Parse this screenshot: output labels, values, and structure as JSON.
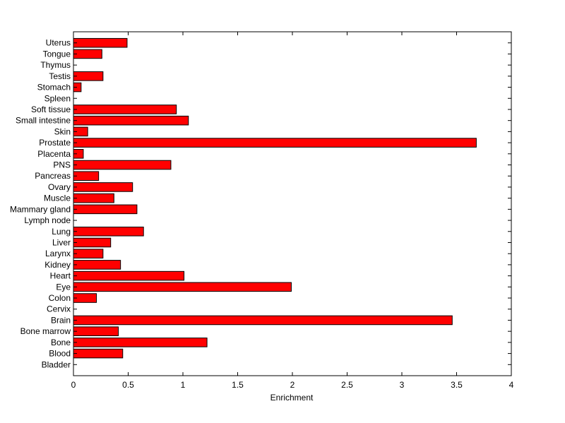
{
  "chart_data": {
    "type": "bar",
    "orientation": "horizontal",
    "title": "",
    "xlabel": "Enrichment",
    "ylabel": "",
    "xlim": [
      0,
      4
    ],
    "xticks": [
      0,
      0.5,
      1,
      1.5,
      2,
      2.5,
      3,
      3.5,
      4
    ],
    "xtick_labels": [
      "0",
      "0.5",
      "1",
      "1.5",
      "2",
      "2.5",
      "3",
      "3.5",
      "4"
    ],
    "grid": false,
    "legend": "none",
    "bar_color": "#ff0000",
    "bar_edge_color": "#000000",
    "categories": [
      "Bladder",
      "Blood",
      "Bone",
      "Bone marrow",
      "Brain",
      "Cervix",
      "Colon",
      "Eye",
      "Heart",
      "Kidney",
      "Larynx",
      "Liver",
      "Lung",
      "Lymph node",
      "Mammary gland",
      "Muscle",
      "Ovary",
      "Pancreas",
      "PNS",
      "Placenta",
      "Prostate",
      "Skin",
      "Small intestine",
      "Soft tissue",
      "Spleen",
      "Stomach",
      "Testis",
      "Thymus",
      "Tongue",
      "Uterus"
    ],
    "values": [
      0,
      0.45,
      1.22,
      0.41,
      3.46,
      0,
      0.21,
      1.99,
      1.01,
      0.43,
      0.27,
      0.34,
      0.64,
      0,
      0.58,
      0.37,
      0.54,
      0.23,
      0.89,
      0.09,
      3.68,
      0.13,
      1.05,
      0.94,
      0,
      0.07,
      0.27,
      0,
      0.26,
      0.49
    ]
  }
}
